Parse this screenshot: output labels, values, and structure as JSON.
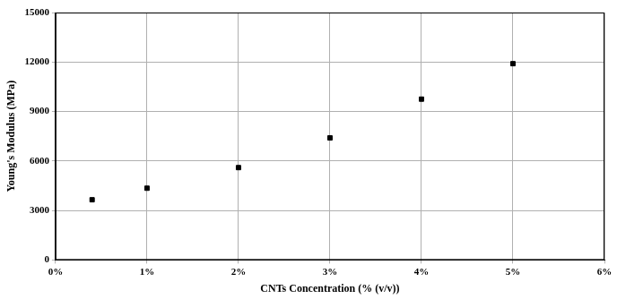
{
  "chart_data": {
    "type": "scatter",
    "x_label": "CNTs Concentration (% (v/v))",
    "y_label": "Young's Modulus (MPa)",
    "x": [
      0.4,
      1,
      2,
      3,
      4,
      5
    ],
    "values": [
      3650,
      4350,
      5600,
      7400,
      9750,
      11900
    ],
    "color": "#000000",
    "marker": "square",
    "xlim": [
      0,
      6
    ],
    "xticks": [
      {
        "value": 0,
        "label": "0%"
      },
      {
        "value": 1,
        "label": "1%"
      },
      {
        "value": 2,
        "label": "2%"
      },
      {
        "value": 3,
        "label": "3%"
      },
      {
        "value": 4,
        "label": "4%"
      },
      {
        "value": 5,
        "label": "5%"
      },
      {
        "value": 6,
        "label": "6%"
      }
    ],
    "ylim": [
      0,
      15000
    ],
    "yticks": [
      0,
      3000,
      6000,
      9000,
      12000,
      15000
    ],
    "grid": true
  }
}
